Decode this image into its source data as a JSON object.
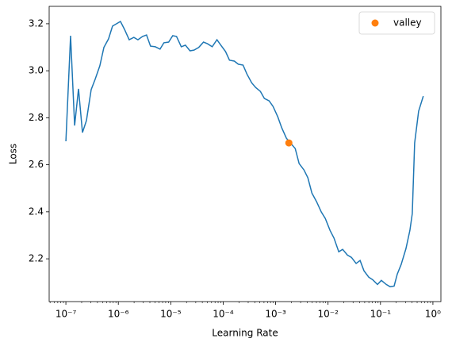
{
  "chart_data": {
    "type": "line",
    "xlabel": "Learning Rate",
    "ylabel": "Loss",
    "xscale": "log",
    "xlim": [
      4.8e-08,
      1.42
    ],
    "ylim": [
      2.018,
      3.274
    ],
    "xticks": [
      {
        "value": 1e-07,
        "label": "10⁻⁷"
      },
      {
        "value": 1e-06,
        "label": "10⁻⁶"
      },
      {
        "value": 1e-05,
        "label": "10⁻⁵"
      },
      {
        "value": 0.0001,
        "label": "10⁻⁴"
      },
      {
        "value": 0.001,
        "label": "10⁻³"
      },
      {
        "value": 0.01,
        "label": "10⁻²"
      },
      {
        "value": 0.1,
        "label": "10⁻¹"
      },
      {
        "value": 1,
        "label": "10⁰"
      }
    ],
    "yticks": [
      2.2,
      2.4,
      2.6,
      2.8,
      {
        "value": 3,
        "label": "3.0"
      },
      3.2
    ],
    "legend": "upper right",
    "series": [
      {
        "color": "#1f77b4",
        "style": "line",
        "x": [
          1e-07,
          1.23e-07,
          1.47e-07,
          1.74e-07,
          2.07e-07,
          2.47e-07,
          3.04e-07,
          3.61e-07,
          4.45e-07,
          5.3e-07,
          6.52e-07,
          7.76e-07,
          1.1e-06,
          1.31e-06,
          1.61e-06,
          1.98e-06,
          2.36e-06,
          2.9e-06,
          3.45e-06,
          4.11e-06,
          5.06e-06,
          6.24e-06,
          7.41e-06,
          9.14e-06,
          1.09e-05,
          1.29e-05,
          1.59e-05,
          1.9e-05,
          2.33e-05,
          2.77e-05,
          3.42e-05,
          4.21e-05,
          5.01e-05,
          6.17e-05,
          7.6e-05,
          9.04e-05,
          0.000111,
          0.000132,
          0.000163,
          0.000194,
          0.000239,
          0.000284,
          0.00035,
          0.000417,
          0.000513,
          0.000611,
          0.000752,
          0.000895,
          0.0011,
          0.00131,
          0.00161,
          0.00192,
          0.00237,
          0.00281,
          0.00347,
          0.00412,
          0.00491,
          0.00604,
          0.00744,
          0.00885,
          0.0109,
          0.013,
          0.016,
          0.019,
          0.0234,
          0.0279,
          0.0343,
          0.0408,
          0.0485,
          0.0598,
          0.0711,
          0.0877,
          0.104,
          0.129,
          0.153,
          0.182,
          0.209,
          0.248,
          0.306,
          0.364,
          0.404,
          0.449,
          0.533,
          0.656
        ],
        "values": [
          2.7,
          3.149,
          2.767,
          2.923,
          2.737,
          2.788,
          2.92,
          2.963,
          3.021,
          3.099,
          3.136,
          3.19,
          3.21,
          3.176,
          3.132,
          3.142,
          3.132,
          3.146,
          3.152,
          3.105,
          3.102,
          3.092,
          3.119,
          3.122,
          3.149,
          3.146,
          3.102,
          3.109,
          3.085,
          3.088,
          3.099,
          3.122,
          3.115,
          3.102,
          3.132,
          3.109,
          3.082,
          3.045,
          3.041,
          3.028,
          3.024,
          2.986,
          2.949,
          2.929,
          2.912,
          2.882,
          2.872,
          2.848,
          2.804,
          2.757,
          2.713,
          2.693,
          2.669,
          2.605,
          2.578,
          2.545,
          2.48,
          2.443,
          2.399,
          2.372,
          2.321,
          2.288,
          2.23,
          2.24,
          2.216,
          2.206,
          2.18,
          2.193,
          2.149,
          2.122,
          2.111,
          2.091,
          2.108,
          2.091,
          2.081,
          2.084,
          2.135,
          2.176,
          2.243,
          2.321,
          2.392,
          2.693,
          2.828,
          2.892
        ]
      },
      {
        "name": "valley",
        "color": "#ff7f0e",
        "style": "marker",
        "x": [
          0.00179
        ],
        "values": [
          2.693
        ]
      }
    ]
  }
}
